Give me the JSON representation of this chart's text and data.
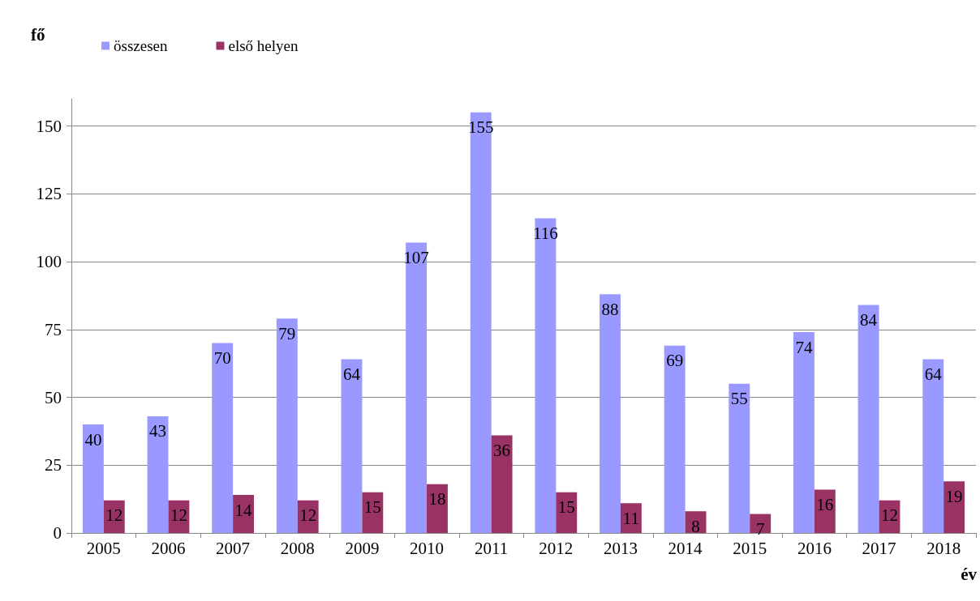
{
  "chart_data": {
    "type": "bar",
    "ylabel": "fő",
    "xlabel": "év",
    "categories": [
      "2005",
      "2006",
      "2007",
      "2008",
      "2009",
      "2010",
      "2011",
      "2012",
      "2013",
      "2014",
      "2015",
      "2016",
      "2017",
      "2018"
    ],
    "series": [
      {
        "name": "összesen",
        "color": "#9999ff",
        "values": [
          40,
          43,
          70,
          79,
          64,
          107,
          155,
          116,
          88,
          69,
          55,
          74,
          84,
          64
        ]
      },
      {
        "name": "első helyen",
        "color": "#993366",
        "values": [
          12,
          12,
          14,
          12,
          15,
          18,
          36,
          15,
          11,
          8,
          7,
          16,
          12,
          19
        ]
      }
    ],
    "ylim": [
      0,
      160
    ],
    "yticks": [
      0,
      25,
      50,
      75,
      100,
      125,
      150
    ],
    "grid": "y",
    "legend": "top left",
    "data_labels": true
  }
}
